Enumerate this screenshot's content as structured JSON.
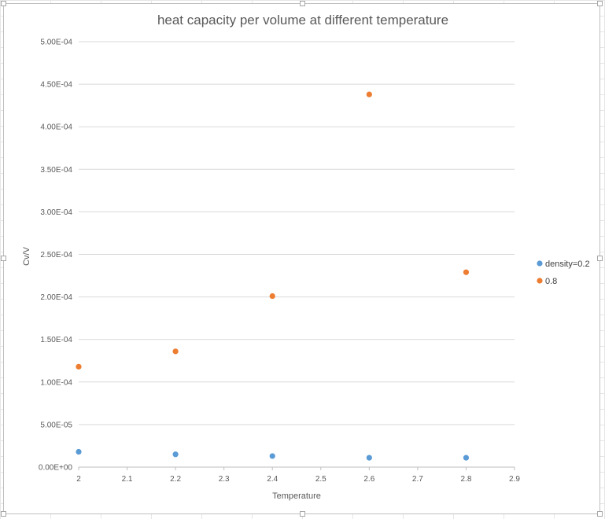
{
  "chart_data": {
    "type": "scatter",
    "title": "heat capacity per volume at different temperature",
    "xlabel": "Temperature",
    "ylabel": "Cv/V",
    "xlim": [
      2,
      2.9
    ],
    "ylim": [
      0,
      0.0005
    ],
    "x_ticks": [
      "2",
      "2.1",
      "2.2",
      "2.3",
      "2.4",
      "2.5",
      "2.6",
      "2.7",
      "2.8",
      "2.9"
    ],
    "y_ticks": [
      "0.00E+00",
      "5.00E-05",
      "1.00E-04",
      "1.50E-04",
      "2.00E-04",
      "2.50E-04",
      "3.00E-04",
      "3.50E-04",
      "4.00E-04",
      "4.50E-04",
      "5.00E-04"
    ],
    "grid": "horizontal",
    "legend_position": "right",
    "series": [
      {
        "name": "density=0.2",
        "color": "#5b9bd5",
        "x": [
          2.0,
          2.2,
          2.4,
          2.6,
          2.8
        ],
        "y": [
          1.8e-05,
          1.5e-05,
          1.3e-05,
          1.1e-05,
          1.1e-05
        ]
      },
      {
        "name": "0.8",
        "color": "#ed7d31",
        "x": [
          2.0,
          2.2,
          2.4,
          2.6,
          2.8
        ],
        "y": [
          0.000118,
          0.000136,
          0.000201,
          0.000438,
          0.000229
        ]
      }
    ]
  }
}
